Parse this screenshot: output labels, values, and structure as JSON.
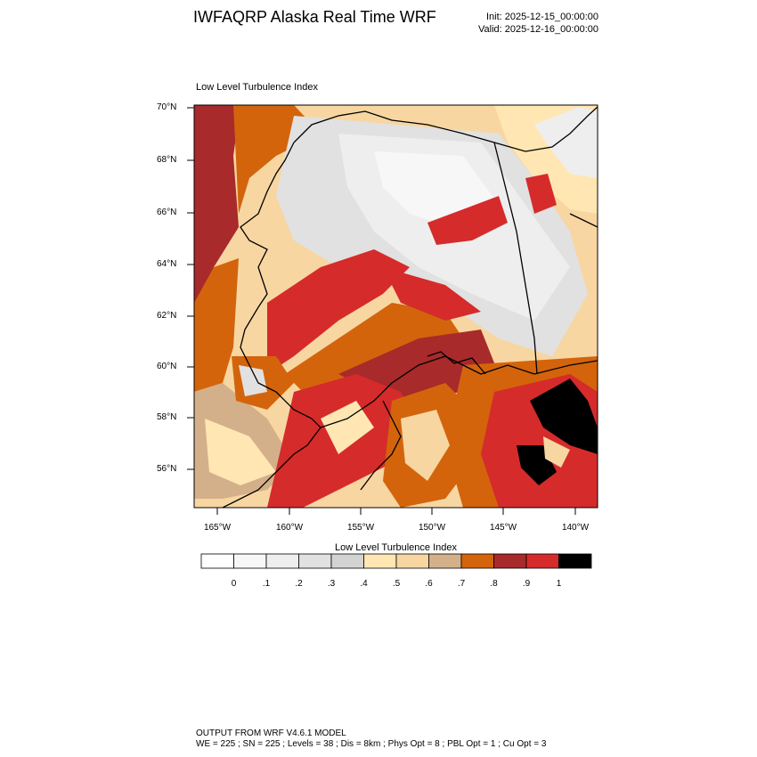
{
  "header": {
    "title": "IWFAQRP Alaska Real Time WRF",
    "init": "Init: 2025-12-15_00:00:00",
    "valid": "Valid: 2025-12-16_00:00:00"
  },
  "map": {
    "subtitle": "Low Level Turbulence Index",
    "lat_labels": [
      "70°N",
      "68°N",
      "66°N",
      "64°N",
      "62°N",
      "60°N",
      "58°N",
      "56°N"
    ],
    "lon_labels": [
      "165°W",
      "160°W",
      "155°W",
      "150°W",
      "145°W",
      "140°W"
    ],
    "lat_values": [
      70,
      68,
      66,
      64,
      62,
      60,
      58,
      56
    ],
    "lon_values": [
      -165,
      -160,
      -155,
      -150,
      -145,
      -140
    ]
  },
  "colorbar": {
    "title": "Low Level Turbulence Index",
    "tick_labels": [
      "0",
      ".1",
      ".2",
      ".3",
      ".4",
      ".5",
      ".6",
      ".7",
      ".8",
      ".9",
      "1"
    ],
    "colors": [
      "#ffffff",
      "#f7f7f7",
      "#eeeeee",
      "#e1e1e1",
      "#d3d3d3",
      "#ffe6b3",
      "#f7d6a2",
      "#d4b08a",
      "#d3640c",
      "#a82a2a",
      "#d62b2b",
      "#000000"
    ]
  },
  "footer": {
    "line1": "OUTPUT FROM WRF V4.6.1 MODEL",
    "line2": "WE = 225 ; SN = 225 ; Levels = 38 ; Dis = 8km ; Phys Opt = 8 ; PBL Opt = 1 ; Cu Opt = 3"
  }
}
